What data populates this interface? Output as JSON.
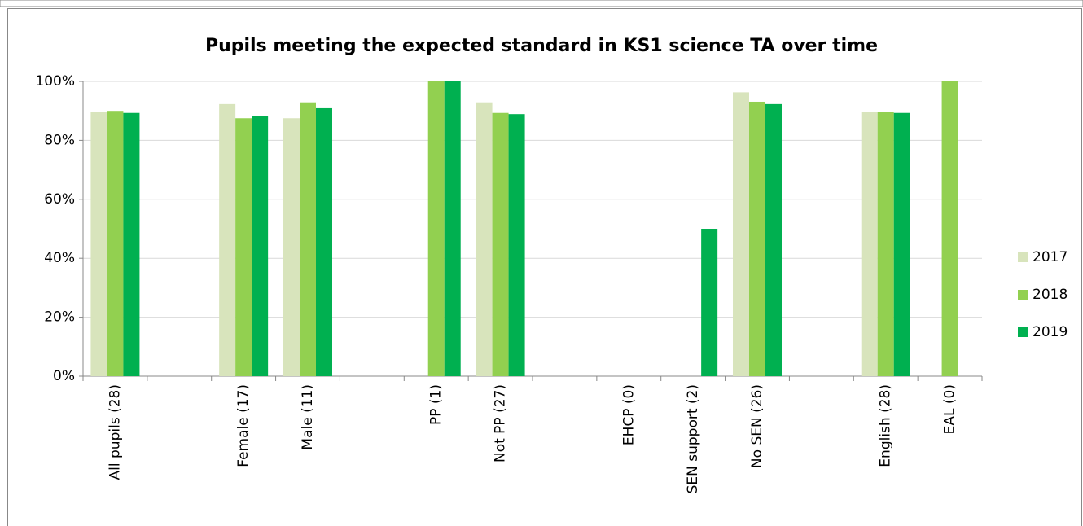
{
  "chart_data": {
    "type": "bar",
    "title": "Pupils meeting the expected standard in KS1 science TA over time",
    "categories": [
      "All pupils (28)",
      null,
      "Female (17)",
      "Male (11)",
      null,
      "PP (1)",
      "Not PP (27)",
      null,
      "EHCP (0)",
      "SEN support (2)",
      "No SEN (26)",
      null,
      "English (28)",
      "EAL (0)"
    ],
    "series": [
      {
        "name": "2017",
        "color": "#d8e4bc",
        "values": [
          89.7,
          null,
          92.3,
          87.5,
          null,
          null,
          92.9,
          null,
          null,
          null,
          96.3,
          null,
          89.7,
          null
        ]
      },
      {
        "name": "2018",
        "color": "#92d050",
        "values": [
          90,
          null,
          87.5,
          92.9,
          null,
          100,
          89.3,
          null,
          null,
          null,
          93.1,
          null,
          89.7,
          100
        ]
      },
      {
        "name": "2019",
        "color": "#00b050",
        "values": [
          89.3,
          null,
          88.2,
          90.9,
          null,
          100,
          88.9,
          null,
          null,
          50,
          92.3,
          null,
          89.3,
          null
        ]
      }
    ],
    "ylim": [
      0,
      100
    ],
    "yticks": [
      {
        "value": 0,
        "label": "0%"
      },
      {
        "value": 20,
        "label": "20%"
      },
      {
        "value": 40,
        "label": "40%"
      },
      {
        "value": 60,
        "label": "60%"
      },
      {
        "value": 80,
        "label": "80%"
      },
      {
        "value": 100,
        "label": "100%"
      }
    ],
    "grid": true,
    "legend": "right"
  }
}
